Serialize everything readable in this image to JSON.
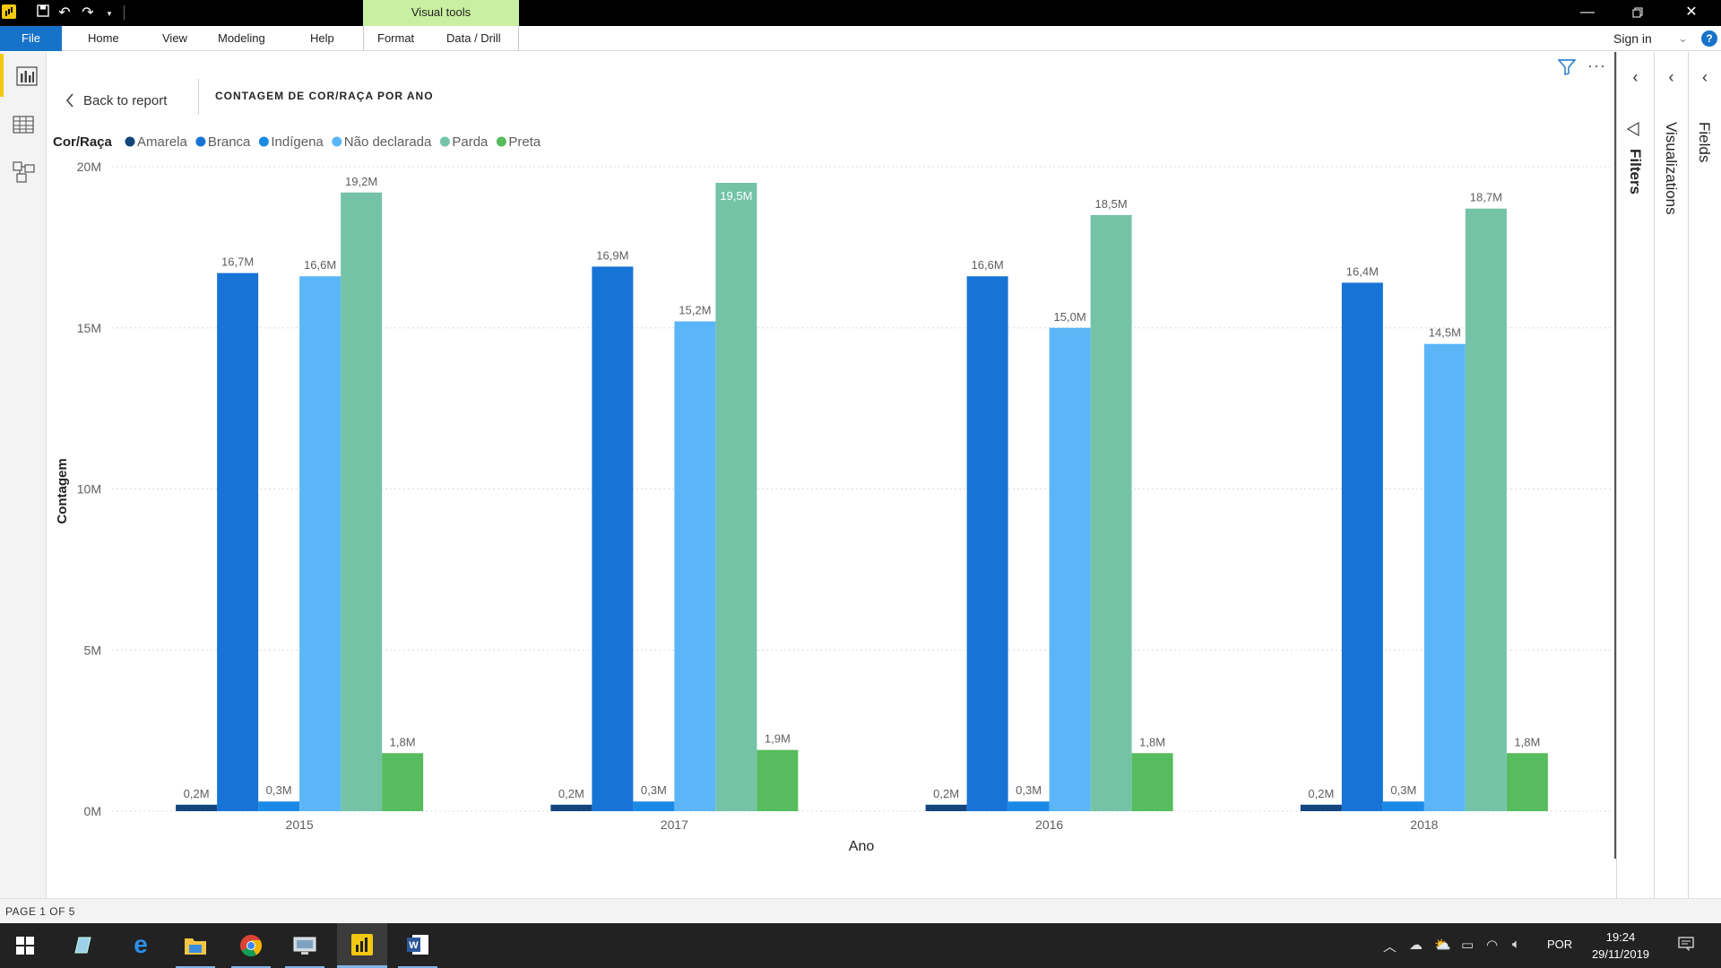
{
  "titlebar": {
    "visual_tools_label": "Visual tools",
    "qa_icons": [
      "save-icon",
      "undo-icon",
      "redo-icon",
      "customize-dropdown-icon"
    ],
    "window_buttons": [
      "minimize-icon",
      "restore-icon",
      "close-icon"
    ]
  },
  "ribbon": {
    "file": "File",
    "home": "Home",
    "view": "View",
    "modeling": "Modeling",
    "help": "Help",
    "format": "Format",
    "data_drill": "Data / Drill",
    "sign_in": "Sign in"
  },
  "leftnav": {
    "items": [
      "report-view-icon",
      "data-view-icon",
      "model-view-icon"
    ],
    "active": "report-view-icon"
  },
  "canvas": {
    "back_label": "Back to report",
    "title": "CONTAGEM DE COR/RAÇA POR ANO"
  },
  "panes": {
    "filters": "Filters",
    "visualizations": "Visualizations",
    "fields": "Fields"
  },
  "pagebar": {
    "indicator": "PAGE 1 OF 5"
  },
  "taskbar": {
    "apps": [
      "windows-start-icon",
      "tablet-icon",
      "edge-icon",
      "file-explorer-icon",
      "chrome-icon",
      "remote-desktop-icon",
      "power-bi-icon",
      "word-icon"
    ],
    "active_app": "power-bi-icon",
    "lang": "POR",
    "time": "19:24",
    "date": "29/11/2019"
  },
  "chart_data": {
    "type": "bar",
    "legend_title": "Cor/Raça",
    "legend_position": "top-left",
    "xlabel": "Ano",
    "ylabel": "Contagem",
    "categories": [
      "2015",
      "2017",
      "2016",
      "2018"
    ],
    "ylim": [
      0,
      20
    ],
    "yticks": [
      "0M",
      "5M",
      "10M",
      "15M",
      "20M"
    ],
    "grid": true,
    "series": [
      {
        "name": "Amarela",
        "color": "#12467c",
        "values": [
          0.2,
          0.2,
          0.2,
          0.2
        ],
        "labels": [
          "0,2M",
          "0,2M",
          "0,2M",
          "0,2M"
        ]
      },
      {
        "name": "Branca",
        "color": "#1774d6",
        "values": [
          16.7,
          16.9,
          16.6,
          16.4
        ],
        "labels": [
          "16,7M",
          "16,9M",
          "16,6M",
          "16,4M"
        ]
      },
      {
        "name": "Indígena",
        "color": "#1b8ae6",
        "values": [
          0.3,
          0.3,
          0.3,
          0.3
        ],
        "labels": [
          "0,3M",
          "0,3M",
          "0,3M",
          "0,3M"
        ]
      },
      {
        "name": "Não declarada",
        "color": "#5bb6f8",
        "values": [
          16.6,
          15.2,
          15.0,
          14.5
        ],
        "labels": [
          "16,6M",
          "15,2M",
          "15,0M",
          "14,5M"
        ]
      },
      {
        "name": "Parda",
        "color": "#74c3a7",
        "values": [
          19.2,
          19.5,
          18.5,
          18.7
        ],
        "labels": [
          "19,2M",
          "19,5M",
          "18,5M",
          "18,7M"
        ]
      },
      {
        "name": "Preta",
        "color": "#56bc5d",
        "values": [
          1.8,
          1.9,
          1.8,
          1.8
        ],
        "labels": [
          "1,8M",
          "1,9M",
          "1,8M",
          "1,8M"
        ]
      }
    ]
  }
}
